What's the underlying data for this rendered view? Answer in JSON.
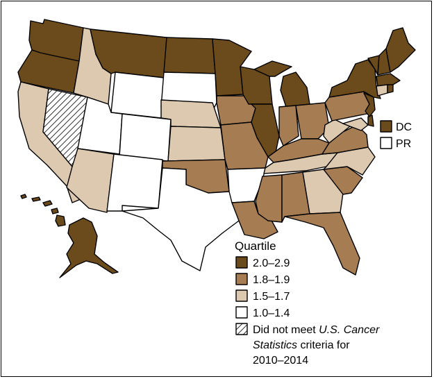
{
  "colors": {
    "q1": "#6b4a1b",
    "q2": "#a67c52",
    "q3": "#ddc9b0",
    "q4": "#ffffff",
    "border": "#000000"
  },
  "legend": {
    "title": "Quartile",
    "items": [
      {
        "label": "2.0–2.9",
        "class": "q1"
      },
      {
        "label": "1.8–1.9",
        "class": "q2"
      },
      {
        "label": "1.5–1.7",
        "class": "q3"
      },
      {
        "label": "1.0–1.4",
        "class": "q4"
      }
    ],
    "hatched": {
      "line1_pre": "Did not meet ",
      "line1_italic": "U.S. Cancer",
      "line2_italic": "Statistics",
      "line2_post": " criteria for",
      "line3": "2010–2014"
    }
  },
  "territories": [
    {
      "abbr": "DC",
      "class": "q1"
    },
    {
      "abbr": "PR",
      "class": "q4"
    }
  ],
  "map_data": {
    "states": {
      "WA": "q1",
      "OR": "q1",
      "CA": "q3",
      "NV": "hatched",
      "ID": "q3",
      "MT": "q1",
      "WY": "q4",
      "UT": "q4",
      "AZ": "q3",
      "CO": "q4",
      "NM": "q4",
      "ND": "q1",
      "SD": "q4",
      "NE": "q3",
      "KS": "q3",
      "OK": "q2",
      "TX": "q4",
      "MN": "q1",
      "IA": "q2",
      "MO": "q2",
      "AR": "q4",
      "LA": "q2",
      "WI": "q1",
      "IL": "q1",
      "MI": "q1",
      "IN": "q2",
      "OH": "q2",
      "KY": "q2",
      "TN": "q3",
      "MS": "q2",
      "AL": "q2",
      "GA": "q3",
      "FL": "q2",
      "SC": "q2",
      "NC": "q3",
      "VA": "q2",
      "WV": "q3",
      "PA": "q2",
      "NY": "q1",
      "VT": "q1",
      "NH": "q1",
      "ME": "q1",
      "MA": "q1",
      "RI": "q1",
      "CT": "q3",
      "NJ": "q1",
      "DE": "q1",
      "MD": "q3",
      "AK": "q1",
      "HI": "q1"
    }
  }
}
